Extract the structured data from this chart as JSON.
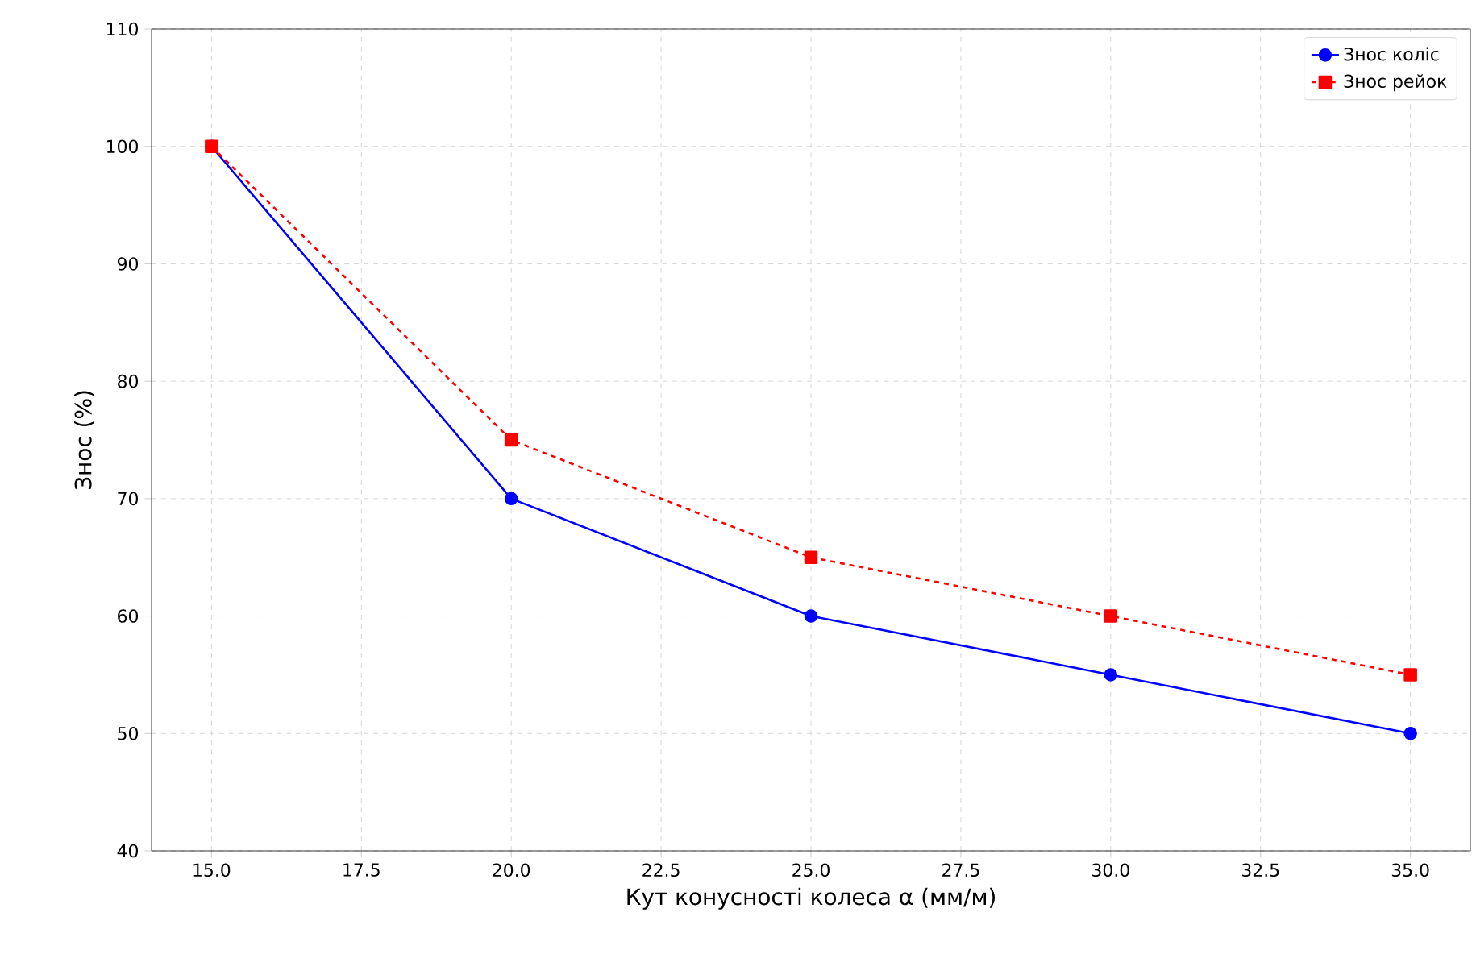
{
  "chart_data": {
    "type": "line",
    "xlabel": "Кут конусності колеса α (мм/м)",
    "ylabel": "Знос (%)",
    "x": [
      15,
      20,
      25,
      30,
      35
    ],
    "series": [
      {
        "name": "Знос коліс",
        "color": "#0000ff",
        "values": [
          100,
          70,
          60,
          55,
          50
        ],
        "marker": "circle",
        "line_style": "solid"
      },
      {
        "name": "Знос рейок",
        "color": "#ff0000",
        "values": [
          100,
          75,
          65,
          60,
          55
        ],
        "marker": "square",
        "line_style": "dashed"
      }
    ],
    "xlim": [
      14,
      36
    ],
    "ylim": [
      40,
      110
    ],
    "xticks": [
      {
        "value": 15,
        "label": "15.0"
      },
      {
        "value": 17.5,
        "label": "17.5"
      },
      {
        "value": 20,
        "label": "20.0"
      },
      {
        "value": 22.5,
        "label": "22.5"
      },
      {
        "value": 25,
        "label": "25.0"
      },
      {
        "value": 27.5,
        "label": "27.5"
      },
      {
        "value": 30,
        "label": "30.0"
      },
      {
        "value": 32.5,
        "label": "32.5"
      },
      {
        "value": 35,
        "label": "35.0"
      }
    ],
    "yticks": [
      40,
      50,
      60,
      70,
      80,
      90,
      100,
      110
    ],
    "grid": true,
    "legend": "top right"
  }
}
